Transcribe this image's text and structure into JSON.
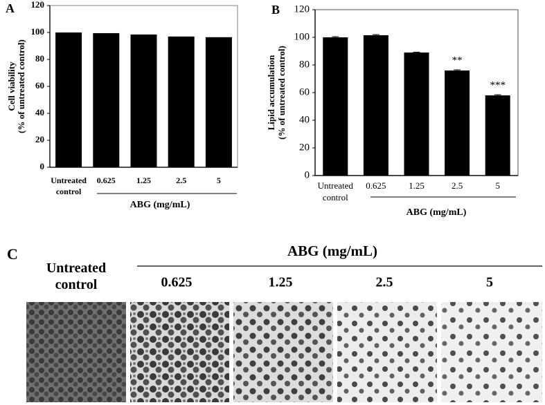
{
  "chart_data": [
    {
      "type": "bar",
      "label": "A",
      "categories": [
        "Untreated control",
        "0.625",
        "1.25",
        "2.5",
        "5"
      ],
      "values": [
        100,
        99.5,
        98.5,
        97,
        96.5
      ],
      "color": "#000000",
      "ylabel": [
        "Cell viability",
        "(% of untreated control)"
      ],
      "xlabel": "ABG (mg/mL)",
      "ylim": [
        0,
        120
      ],
      "yticks": [
        0,
        20,
        40,
        60,
        80,
        100,
        120
      ],
      "grid": false
    },
    {
      "type": "bar",
      "label": "B",
      "categories": [
        "Untreated control",
        "0.625",
        "1.25",
        "2.5",
        "5"
      ],
      "values": [
        100,
        101.5,
        89,
        76,
        58
      ],
      "errors": [
        0.5,
        0.5,
        0.3,
        0.5,
        0.5
      ],
      "value_annotations": [
        null,
        null,
        null,
        "**",
        "***"
      ],
      "color": "#000000",
      "ylabel": [
        "Lipid accumulation",
        "(% of untreated control)"
      ],
      "xlabel": "ABG (mg/mL)",
      "ylim": [
        0,
        120
      ],
      "yticks": [
        0,
        20,
        40,
        60,
        80,
        100,
        120
      ],
      "grid": false
    }
  ],
  "panel_c": {
    "label": "C",
    "title": "ABG (mg/mL)",
    "control_label": "Untreated control",
    "columns": [
      "0.625",
      "1.25",
      "2.5",
      "5"
    ]
  }
}
